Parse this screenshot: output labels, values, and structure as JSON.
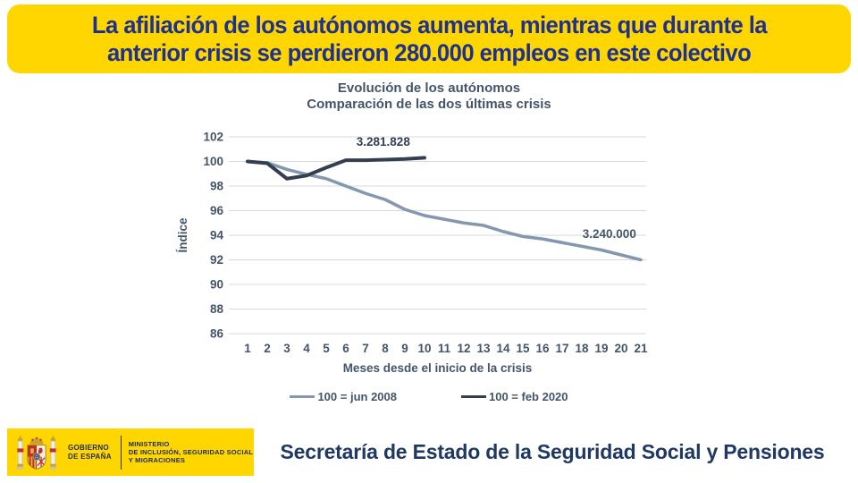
{
  "banner": {
    "line1": "La afiliación de los autónomos aumenta, mientras que durante la",
    "line2": "anterior crisis se perdieron 280.000 empleos en este colectivo",
    "bg_color": "#FFD600",
    "text_color": "#1E3090"
  },
  "chart_data": {
    "type": "line",
    "title": "Evolución de los autónomos",
    "subtitle": "Comparación de las dos últimas crisis",
    "xlabel": "Meses desde el inicio de la crisis",
    "ylabel": "Índice",
    "x": [
      1,
      2,
      3,
      4,
      5,
      6,
      7,
      8,
      9,
      10,
      11,
      12,
      13,
      14,
      15,
      16,
      17,
      18,
      19,
      20,
      21
    ],
    "ylim": [
      86,
      102
    ],
    "ytick_step": 2,
    "grid": true,
    "grid_color": "#D9D9D9",
    "legend_position": "bottom",
    "series": [
      {
        "name": "100 = jun 2008",
        "color": "#8497B0",
        "width": 3.5,
        "values": [
          100,
          99.9,
          99.35,
          98.95,
          98.6,
          98.0,
          97.4,
          96.9,
          96.1,
          95.6,
          95.3,
          95.0,
          94.8,
          94.3,
          93.9,
          93.7,
          93.4,
          93.1,
          92.8,
          92.4,
          92.0
        ]
      },
      {
        "name": "100 = feb 2020",
        "color": "#333F50",
        "width": 4,
        "values": [
          100,
          99.85,
          98.6,
          98.85,
          99.5,
          100.1,
          100.1,
          100.15,
          100.2,
          100.3,
          null,
          null,
          null,
          null,
          null,
          null,
          null,
          null,
          null,
          null,
          null
        ]
      }
    ],
    "annotations": [
      {
        "text": "3.281.828",
        "x": 7.9,
        "y": 101.6,
        "color": "#333F50"
      },
      {
        "text": "3.240.000",
        "x": 19.4,
        "y": 94.1,
        "color": "#44546A"
      }
    ]
  },
  "footer": {
    "logo": {
      "gobierno_line1": "GOBIERNO",
      "gobierno_line2": "DE ESPAÑA",
      "ministerio_line1": "MINISTERIO",
      "ministerio_line2": "DE INCLUSIÓN, SEGURIDAD SOCIAL",
      "ministerio_line3": "Y MIGRACIONES",
      "bg_color": "#FFD600"
    },
    "title": "Secretaría de Estado de la Seguridad Social y Pensiones",
    "title_color": "#1F3864"
  }
}
